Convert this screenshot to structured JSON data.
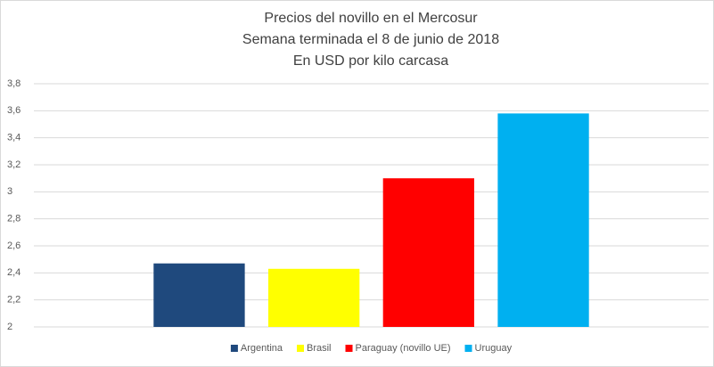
{
  "chart_data": {
    "type": "bar",
    "title": "Precios del novillo en el Mercosur",
    "subtitle": [
      "Semana terminada el 8 de junio de 2018",
      "En USD por kilo carcasa"
    ],
    "categories": [
      null
    ],
    "series": [
      {
        "name": "Argentina",
        "color": "#1f497d",
        "values": [
          2.47
        ]
      },
      {
        "name": "Brasil",
        "color": "#ffff00",
        "values": [
          2.43
        ]
      },
      {
        "name": "Paraguay (novillo UE)",
        "color": "#ff0000",
        "values": [
          3.1
        ]
      },
      {
        "name": "Uruguay",
        "color": "#00b0f0",
        "values": [
          3.58
        ]
      }
    ],
    "ylim": [
      2,
      3.8
    ],
    "yticks": [
      2,
      {
        "value": 2.2,
        "label": "2,2"
      },
      {
        "value": 2.4,
        "label": "2,4"
      },
      {
        "value": 2.6,
        "label": "2,6"
      },
      {
        "value": 2.8,
        "label": "2,8"
      },
      3,
      {
        "value": 3.2,
        "label": "3,2"
      },
      {
        "value": 3.4,
        "label": "3,4"
      },
      {
        "value": 3.6,
        "label": "3,6"
      },
      {
        "value": 3.8,
        "label": "3,8"
      }
    ],
    "grid": true,
    "legend": "bottom"
  }
}
